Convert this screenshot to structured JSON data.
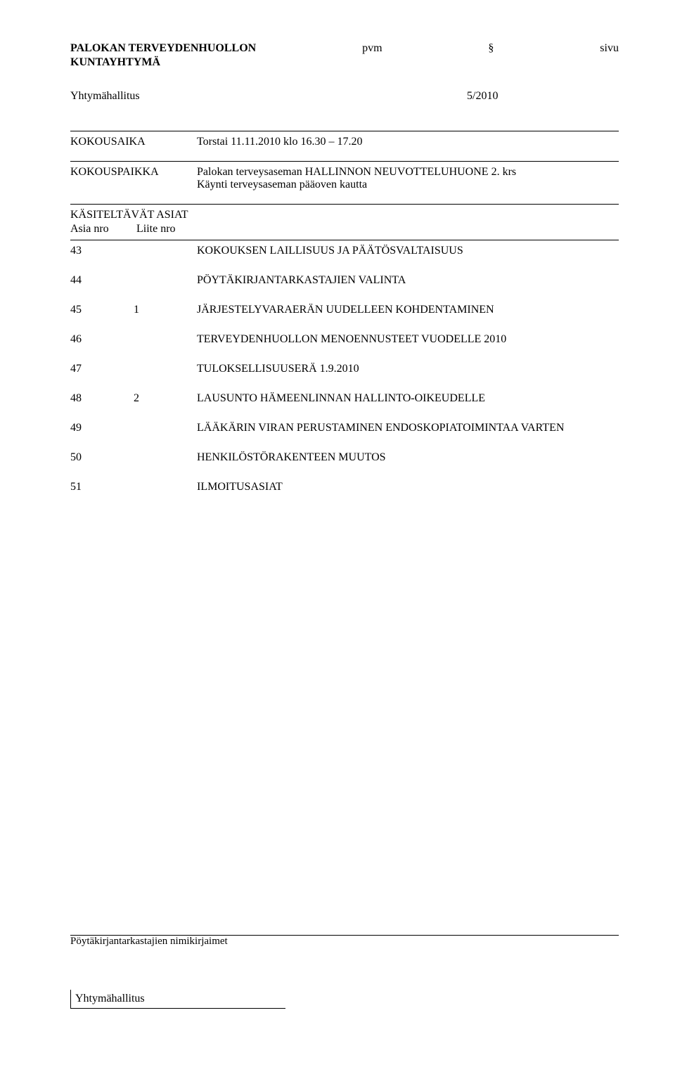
{
  "header": {
    "org_line1": "PALOKAN TERVEYDENHUOLLON",
    "org_line2": "KUNTAYHTYMÄ",
    "col_pvm": "pvm",
    "col_section": "§",
    "col_page": "sivu"
  },
  "meeting": {
    "body": "Yhtymähallitus",
    "number": "5/2010"
  },
  "rows": {
    "time_label": "KOKOUSAIKA",
    "time_value": "Torstai 11.11.2010 klo 16.30 – 17.20",
    "place_label": "KOKOUSPAIKKA",
    "place_value_l1": "Palokan terveysaseman HALLINNON NEUVOTTELUHUONE 2. krs",
    "place_value_l2": "Käynti terveysaseman pääoven kautta",
    "agenda_label": "KÄSITELTÄVÄT ASIAT",
    "agenda_col1": "Asia nro",
    "agenda_col2": "Liite nro"
  },
  "items": [
    {
      "nro": "43",
      "liite": "",
      "title": "KOKOUKSEN LAILLISUUS JA PÄÄTÖSVALTAISUUS"
    },
    {
      "nro": "44",
      "liite": "",
      "title": "PÖYTÄKIRJANTARKASTAJIEN VALINTA"
    },
    {
      "nro": "45",
      "liite": "1",
      "title": "JÄRJESTELYVARAERÄN UUDELLEEN KOHDENTAMINEN"
    },
    {
      "nro": "46",
      "liite": "",
      "title": "TERVEYDENHUOLLON  MENOENNUSTEET  VUODELLE 2010"
    },
    {
      "nro": "47",
      "liite": "",
      "title": "TULOKSELLISUUSERÄ 1.9.2010"
    },
    {
      "nro": "48",
      "liite": "2",
      "title": "LAUSUNTO HÄMEENLINNAN HALLINTO-OIKEUDELLE"
    },
    {
      "nro": "49",
      "liite": "",
      "title": "LÄÄKÄRIN VIRAN PERUSTAMINEN ENDOSKOPIATOIMINTAA VARTEN"
    },
    {
      "nro": "50",
      "liite": "",
      "title": "HENKILÖSTÖRAKENTEEN  MUUTOS"
    },
    {
      "nro": "51",
      "liite": "",
      "title": "ILMOITUSASIAT"
    }
  ],
  "footer": {
    "initials": "Pöytäkirjantarkastajien nimikirjaimet",
    "board": "Yhtymähallitus"
  }
}
